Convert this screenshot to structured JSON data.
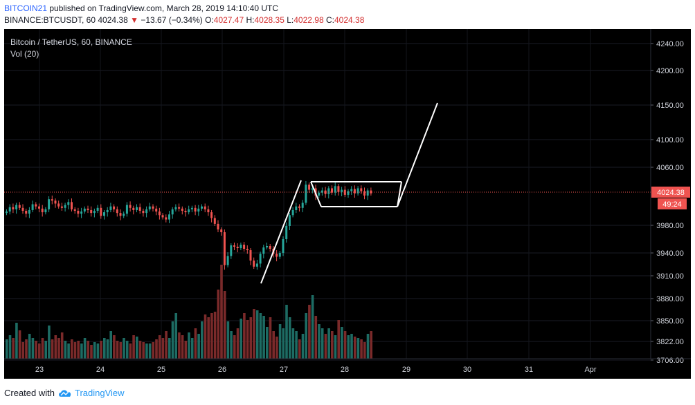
{
  "header": {
    "author": "BITCOIN21",
    "published": "published on TradingView.com, March 28, 2019 14:10:40 UTC",
    "symbol": "BINANCE:BTCUSDT, 60",
    "last": "4024.38",
    "change": "−13.67 (−0.34%)",
    "o_label": "O:",
    "o_value": "4027.47",
    "h_label": "H:",
    "h_value": "4028.35",
    "l_label": "L:",
    "l_value": "4022.98",
    "c_label": "C:",
    "c_value": "4024.38"
  },
  "legend": {
    "title": "Bitcoin / TetherUS, 60, BINANCE",
    "volume": "Vol (20)"
  },
  "footer": {
    "created_with": "Created with",
    "brand": "TradingView"
  },
  "colors": {
    "background": "#000000",
    "up": "#26a69a",
    "down": "#ef5350",
    "vol_up": "#1d6b63",
    "vol_down": "#7a2a2a",
    "price_tag": "#ef5350",
    "axis_text": "#d1d4dc",
    "drawing": "#ffffff"
  },
  "chart_data": {
    "type": "candlestick",
    "price_axis_ticks": [
      "4240.00",
      "4200.00",
      "4150.00",
      "4100.00",
      "4060.00",
      "4024.38",
      "3980.00",
      "3940.00",
      "3910.00",
      "3880.00",
      "3850.00",
      "3822.00",
      "3706.00"
    ],
    "time_axis_ticks": [
      "23",
      "24",
      "25",
      "26",
      "27",
      "28",
      "29",
      "30",
      "31",
      "Apr"
    ],
    "last_price": 4024.38,
    "countdown": "49:24",
    "candle_closes": [
      3999,
      4005,
      4002,
      4008,
      4004,
      4000,
      3996,
      4001,
      4009,
      4006,
      4003,
      3998,
      4002,
      4016,
      4014,
      4010,
      4006,
      4004,
      4008,
      4012,
      4002,
      4000,
      3996,
      3999,
      4003,
      4001,
      3997,
      4000,
      4004,
      3993,
      3998,
      4001,
      4006,
      4002,
      3997,
      3993,
      3996,
      4008,
      4004,
      4001,
      4005,
      4000,
      3997,
      4002,
      4006,
      4003,
      3999,
      3994,
      3991,
      3988,
      3995,
      4002,
      4005,
      4003,
      4000,
      3998,
      4002,
      4004,
      3999,
      4003,
      4006,
      4002,
      3998,
      3990,
      3982,
      3974,
      3970,
      3924,
      3936,
      3951,
      3949,
      3947,
      3952,
      3946,
      3944,
      3930,
      3922,
      3926,
      3939,
      3948,
      3950,
      3946,
      3939,
      3935,
      3940,
      3960,
      3979,
      3994,
      4001,
      4006,
      4004,
      4011,
      4036,
      4029,
      4031,
      4021,
      4025,
      4028,
      4023,
      4031,
      4025,
      4034,
      4026,
      4029,
      4022,
      4027,
      4030,
      4024,
      4031,
      4027,
      4021,
      4028,
      4024
    ],
    "volumes": [
      28,
      34,
      30,
      52,
      41,
      24,
      28,
      36,
      30,
      26,
      22,
      30,
      26,
      48,
      28,
      34,
      30,
      38,
      26,
      22,
      28,
      24,
      26,
      22,
      30,
      26,
      20,
      24,
      22,
      26,
      30,
      28,
      40,
      34,
      26,
      24,
      30,
      26,
      22,
      34,
      32,
      26,
      24,
      22,
      22,
      24,
      28,
      34,
      30,
      40,
      30,
      54,
      66,
      38,
      34,
      26,
      38,
      30,
      44,
      36,
      54,
      64,
      60,
      66,
      68,
      100,
      136,
      98,
      54,
      40,
      34,
      44,
      58,
      66,
      56,
      60,
      72,
      70,
      66,
      62,
      46,
      60,
      40,
      32,
      50,
      44,
      78,
      60,
      44,
      40,
      28,
      36,
      66,
      78,
      92,
      62,
      50,
      44,
      36,
      44,
      40,
      34,
      56,
      46,
      40,
      34,
      36,
      32,
      30,
      28,
      24,
      36,
      40
    ]
  }
}
